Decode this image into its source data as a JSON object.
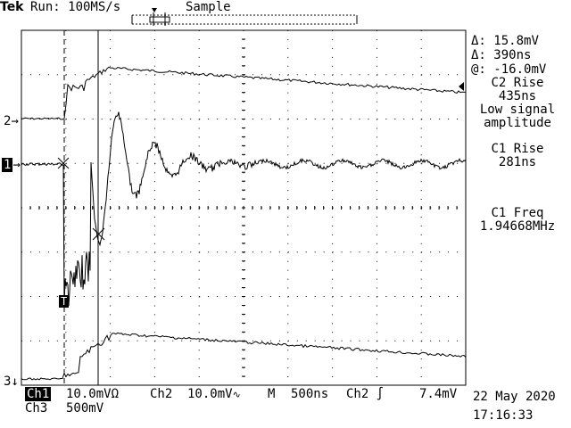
{
  "header": {
    "brand": "Tek",
    "run_label": "Run: 100MS/s",
    "mode": "Sample"
  },
  "cursor_readout": {
    "delta_v": "15.8mV",
    "delta_t": "390ns",
    "at_v": "-16.0mV"
  },
  "measurements": [
    {
      "label": "C2 Rise",
      "value": "435ns"
    },
    {
      "label": "Low signal",
      "value": "amplitude"
    },
    {
      "label": "C1 Rise",
      "value": "281ns"
    },
    {
      "label": "C1 Freq",
      "value": "1.94668MHz"
    }
  ],
  "channel_markers": {
    "ch1": "1",
    "ch2": "2",
    "ch3": "3",
    "trigger": "T"
  },
  "footer": {
    "ch1_label": "Ch1",
    "ch1_scale": "10.0mVΩ",
    "ch2_label": "Ch2",
    "ch2_scale": "10.0mV",
    "timebase_label": "M",
    "timebase": "500ns",
    "trigger_source": "Ch2",
    "trigger_level": "7.4mV",
    "ch3_label": "Ch3",
    "ch3_scale": "500mV",
    "date": "22 May 2020",
    "time": "17:16:33"
  },
  "colors": {
    "trace": "#000000",
    "background": "#ffffff"
  }
}
